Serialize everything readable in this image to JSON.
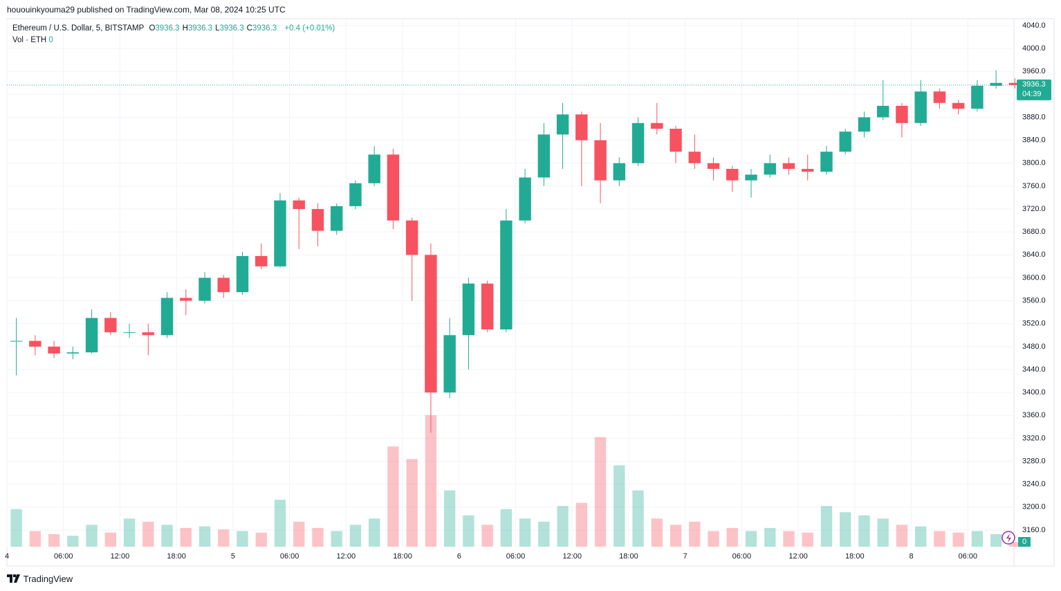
{
  "header": {
    "attribution": "hououinkyouma29 published on TradingView.com, Mar 08, 2024 10:25 UTC",
    "symbol": "Ethereum / U.S. Dollar, 5, BITSTAMP",
    "ohlc": [
      {
        "label": "O",
        "value": 3936.3
      },
      {
        "label": "H",
        "value": 3936.3
      },
      {
        "label": "L",
        "value": 3936.3
      },
      {
        "label": "C",
        "value": 3936.3
      }
    ],
    "change": "+0.4 (+0.01%)",
    "volume_label": "Vol · ETH",
    "volume_value": 0
  },
  "chart_data": {
    "type": "candlestick",
    "x": [
      0,
      2,
      4,
      6,
      8,
      10,
      12,
      14,
      16,
      18,
      20,
      22,
      24,
      26,
      28,
      30,
      32,
      34,
      36,
      38,
      40,
      42,
      44,
      46,
      48,
      50,
      52,
      54,
      56,
      58,
      60,
      62,
      64,
      66,
      68,
      70,
      72,
      74,
      76,
      78,
      80,
      82,
      84,
      86,
      88,
      90,
      92,
      94,
      96,
      98,
      100,
      102,
      104,
      106
    ],
    "open": [
      3490,
      3490,
      3480,
      3468,
      3470,
      3530,
      3505,
      3505,
      3500,
      3565,
      3560,
      3600,
      3575,
      3638,
      3620,
      3735,
      3720,
      3682,
      3725,
      3765,
      3815,
      3700,
      3640,
      3400,
      3500,
      3590,
      3510,
      3700,
      3775,
      3850,
      3885,
      3840,
      3770,
      3800,
      3870,
      3860,
      3820,
      3800,
      3790,
      3770,
      3780,
      3800,
      3790,
      3785,
      3820,
      3855,
      3880,
      3900,
      3870,
      3925,
      3905,
      3895,
      3935,
      3940
    ],
    "high": [
      3530,
      3500,
      3490,
      3480,
      3545,
      3540,
      3520,
      3520,
      3575,
      3580,
      3610,
      3605,
      3645,
      3660,
      3748,
      3740,
      3730,
      3730,
      3770,
      3830,
      3825,
      3705,
      3660,
      3530,
      3600,
      3595,
      3720,
      3790,
      3870,
      3905,
      3890,
      3870,
      3810,
      3880,
      3905,
      3865,
      3850,
      3810,
      3795,
      3790,
      3815,
      3810,
      3815,
      3830,
      3860,
      3890,
      3945,
      3905,
      3945,
      3930,
      3910,
      3945,
      3962,
      3948
    ],
    "low": [
      3430,
      3465,
      3460,
      3458,
      3468,
      3500,
      3495,
      3465,
      3495,
      3535,
      3555,
      3565,
      3570,
      3615,
      3618,
      3650,
      3655,
      3675,
      3720,
      3760,
      3685,
      3560,
      3330,
      3390,
      3440,
      3505,
      3505,
      3695,
      3760,
      3790,
      3760,
      3730,
      3760,
      3795,
      3850,
      3800,
      3790,
      3770,
      3750,
      3740,
      3775,
      3780,
      3770,
      3780,
      3815,
      3845,
      3875,
      3845,
      3865,
      3895,
      3885,
      3890,
      3930,
      3930
    ],
    "close": [
      3490,
      3480,
      3468,
      3470,
      3530,
      3505,
      3505,
      3500,
      3565,
      3560,
      3600,
      3575,
      3638,
      3620,
      3735,
      3720,
      3682,
      3725,
      3765,
      3815,
      3700,
      3640,
      3400,
      3500,
      3590,
      3510,
      3700,
      3775,
      3850,
      3885,
      3840,
      3770,
      3800,
      3870,
      3860,
      3820,
      3800,
      3790,
      3770,
      3780,
      3800,
      3790,
      3785,
      3820,
      3855,
      3880,
      3900,
      3870,
      3925,
      3905,
      3895,
      3935,
      3940,
      3936.3
    ],
    "volume": [
      1200,
      500,
      400,
      350,
      700,
      450,
      900,
      800,
      700,
      600,
      650,
      550,
      500,
      450,
      1500,
      800,
      600,
      500,
      700,
      900,
      3200,
      2800,
      4200,
      1800,
      1000,
      700,
      1200,
      900,
      800,
      1300,
      1400,
      3500,
      2600,
      1800,
      900,
      700,
      800,
      500,
      600,
      500,
      600,
      500,
      450,
      1300,
      1100,
      1000,
      900,
      700,
      650,
      500,
      450,
      500,
      400,
      150
    ],
    "up_color": "#22ab94",
    "down_color": "#f7525f",
    "xlim": [
      0,
      106.9
    ],
    "ylim": [
      3131,
      4052
    ],
    "yticks": [
      {
        "value": 3160,
        "label": "3160.0"
      },
      {
        "value": 3200,
        "label": "3200.0"
      },
      {
        "value": 3240,
        "label": "3240.0"
      },
      {
        "value": 3280,
        "label": "3280.0"
      },
      {
        "value": 3320,
        "label": "3320.0"
      },
      {
        "value": 3360,
        "label": "3360.0"
      },
      {
        "value": 3400,
        "label": "3400.0"
      },
      {
        "value": 3440,
        "label": "3440.0"
      },
      {
        "value": 3480,
        "label": "3480.0"
      },
      {
        "value": 3520,
        "label": "3520.0"
      },
      {
        "value": 3560,
        "label": "3560.0"
      },
      {
        "value": 3600,
        "label": "3600.0"
      },
      {
        "value": 3640,
        "label": "3640.0"
      },
      {
        "value": 3680,
        "label": "3680.0"
      },
      {
        "value": 3720,
        "label": "3720.0"
      },
      {
        "value": 3760,
        "label": "3760.0"
      },
      {
        "value": 3800,
        "label": "3800.0"
      },
      {
        "value": 3840,
        "label": "3840.0"
      },
      {
        "value": 3880,
        "label": "3880.0"
      },
      {
        "value": 3920,
        "label": "3920.0"
      },
      {
        "value": 3960,
        "label": "3960.0"
      },
      {
        "value": 4000,
        "label": "4000.0"
      },
      {
        "value": 4040,
        "label": "4040.0"
      }
    ],
    "xticks": [
      {
        "value": 0,
        "label": "4"
      },
      {
        "value": 6,
        "label": "06:00"
      },
      {
        "value": 12,
        "label": "12:00"
      },
      {
        "value": 18,
        "label": "18:00"
      },
      {
        "value": 24,
        "label": "5"
      },
      {
        "value": 30,
        "label": "06:00"
      },
      {
        "value": 36,
        "label": "12:00"
      },
      {
        "value": 42,
        "label": "18:00"
      },
      {
        "value": 48,
        "label": "6"
      },
      {
        "value": 54,
        "label": "06:00"
      },
      {
        "value": 60,
        "label": "12:00"
      },
      {
        "value": 66,
        "label": "18:00"
      },
      {
        "value": 72,
        "label": "7"
      },
      {
        "value": 78,
        "label": "06:00"
      },
      {
        "value": 84,
        "label": "12:00"
      },
      {
        "value": 90,
        "label": "18:00"
      },
      {
        "value": 96,
        "label": "8"
      },
      {
        "value": 102,
        "label": "06:00"
      }
    ],
    "grid": true,
    "last_price": 3936.3,
    "countdown": "04:39"
  },
  "footer": {
    "brand": "TradingView"
  }
}
